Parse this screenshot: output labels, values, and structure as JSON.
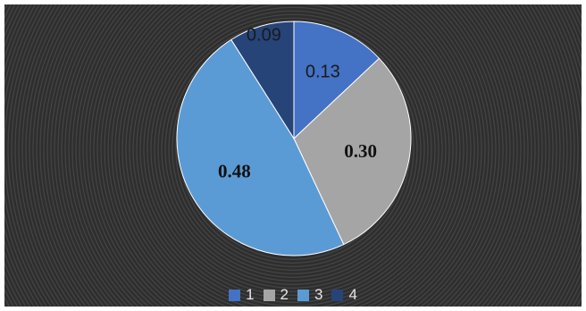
{
  "chart_data": {
    "type": "pie",
    "title": "",
    "categories": [
      "1",
      "2",
      "3",
      "4"
    ],
    "values": [
      0.13,
      0.3,
      0.48,
      0.09
    ],
    "data_labels": [
      "0.13",
      "0.30",
      "0.48",
      "0.09"
    ],
    "colors": [
      "#4472c4",
      "#a5a5a5",
      "#5b9bd5",
      "#264478"
    ],
    "legend_position": "bottom",
    "start_angle_deg": 0,
    "direction": "clockwise"
  }
}
